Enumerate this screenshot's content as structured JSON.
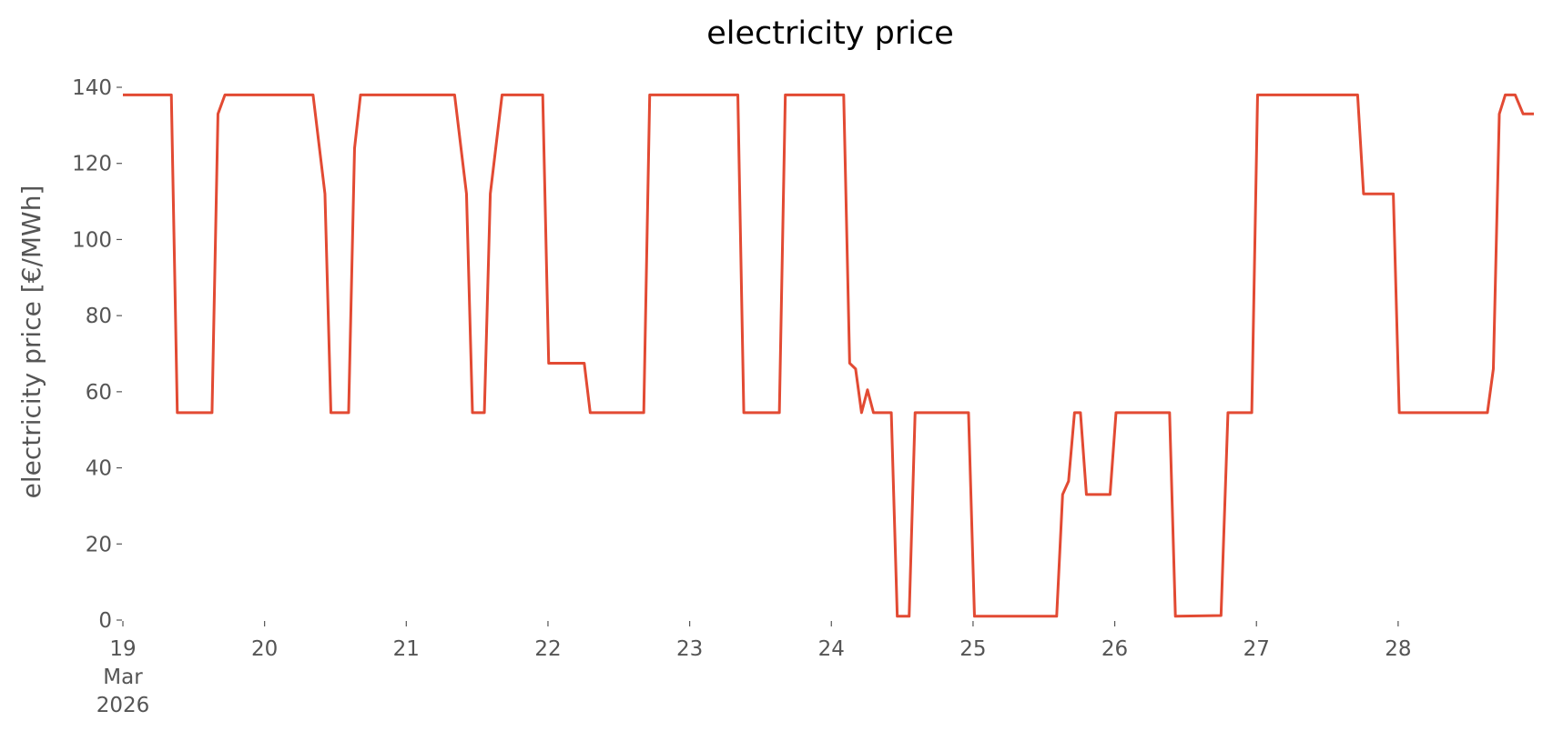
{
  "chart_data": {
    "type": "line",
    "title": "electricity price",
    "y_label": "electricity price [€/MWh]",
    "x": [
      19,
      19.342,
      19.384,
      19.629,
      19.671,
      19.72,
      20.342,
      20.426,
      20.468,
      20.593,
      20.635,
      20.677,
      21.341,
      21.425,
      21.467,
      21.551,
      21.593,
      21.676,
      21.963,
      22.005,
      22.256,
      22.298,
      22.676,
      22.718,
      23.34,
      23.382,
      23.633,
      23.675,
      24.087,
      24.129,
      24.171,
      24.213,
      24.255,
      24.297,
      24.423,
      24.465,
      24.549,
      24.591,
      24.968,
      25.01,
      25.59,
      25.632,
      25.674,
      25.716,
      25.758,
      25.8,
      25.967,
      26.009,
      26.387,
      26.428,
      26.75,
      26.799,
      26.967,
      27.008,
      27.714,
      27.756,
      27.966,
      28.008,
      28.63,
      28.672,
      28.714,
      28.756,
      28.826,
      28.882,
      28.958
    ],
    "series": [
      {
        "name": "electricity price",
        "color": "#e24a33",
        "values": [
          138,
          138,
          54.5,
          54.5,
          133,
          138,
          138,
          112,
          54.5,
          54.5,
          124,
          138,
          138,
          112,
          54.5,
          54.5,
          112,
          138,
          138,
          67.5,
          67.5,
          54.5,
          54.5,
          138,
          138,
          54.5,
          54.5,
          138,
          138,
          67.5,
          66,
          54.5,
          60.5,
          54.5,
          54.5,
          1,
          1,
          54.5,
          54.5,
          1,
          1,
          33,
          36.5,
          54.5,
          54.5,
          33,
          33,
          54.5,
          54.5,
          1,
          1.2,
          54.5,
          54.5,
          138,
          138,
          112,
          112,
          54.5,
          54.5,
          66,
          133,
          138,
          138,
          133,
          133
        ]
      }
    ],
    "xlim": [
      19,
      28.958
    ],
    "xticks": [
      {
        "value": 19,
        "label": "19\nMar\n2026"
      },
      20,
      21,
      22,
      23,
      24,
      25,
      26,
      27,
      28
    ],
    "ylim": [
      0,
      140
    ],
    "yticks": [
      0,
      20,
      40,
      60,
      80,
      100,
      120,
      140
    ],
    "grid": false
  }
}
